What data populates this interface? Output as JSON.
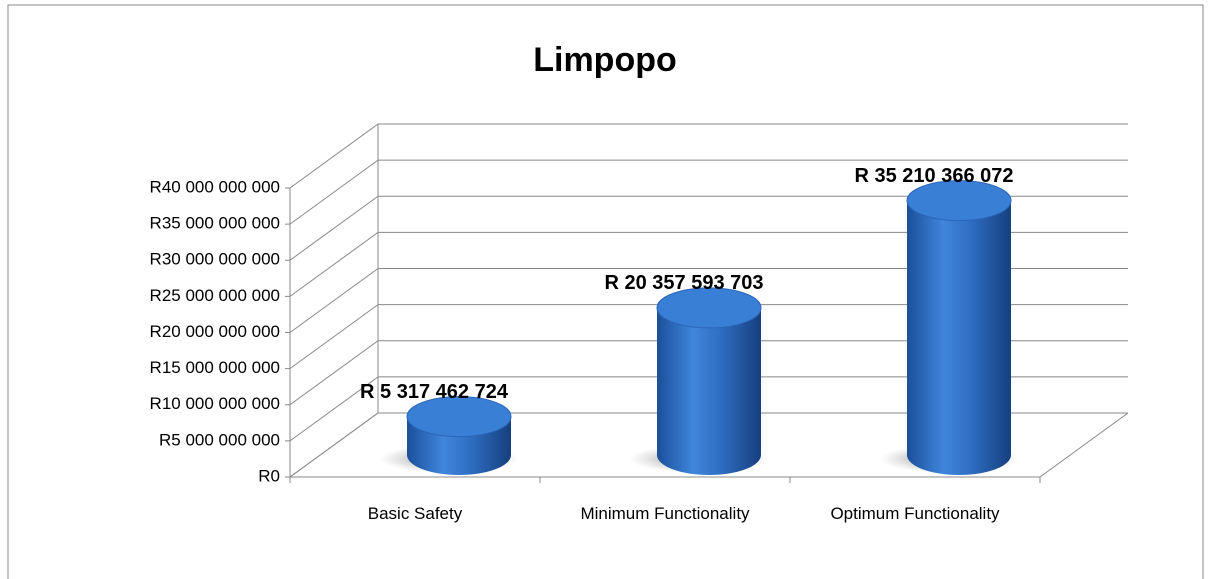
{
  "chart_data": {
    "type": "bar",
    "title": "Limpopo",
    "categories": [
      "Basic Safety",
      "Minimum Functionality",
      "Optimum Functionality"
    ],
    "values": [
      5317462724,
      20357593703,
      35210366072
    ],
    "value_labels": [
      "R 5 317 462 724",
      "R 20 357 593 703",
      "R 35 210 366 072"
    ],
    "color": "#2f6fc4",
    "ylim": [
      0,
      40000000000
    ],
    "yticks": [
      {
        "value": 0,
        "label": "R0"
      },
      {
        "value": 5000000000,
        "label": "R5 000 000 000"
      },
      {
        "value": 10000000000,
        "label": "R10 000 000 000"
      },
      {
        "value": 15000000000,
        "label": "R15 000 000 000"
      },
      {
        "value": 20000000000,
        "label": "R20 000 000 000"
      },
      {
        "value": 25000000000,
        "label": "R25 000 000 000"
      },
      {
        "value": 30000000000,
        "label": "R30 000 000 000"
      },
      {
        "value": 35000000000,
        "label": "R35 000 000 000"
      },
      {
        "value": 40000000000,
        "label": "R40 000 000 000"
      }
    ],
    "grid": true
  }
}
